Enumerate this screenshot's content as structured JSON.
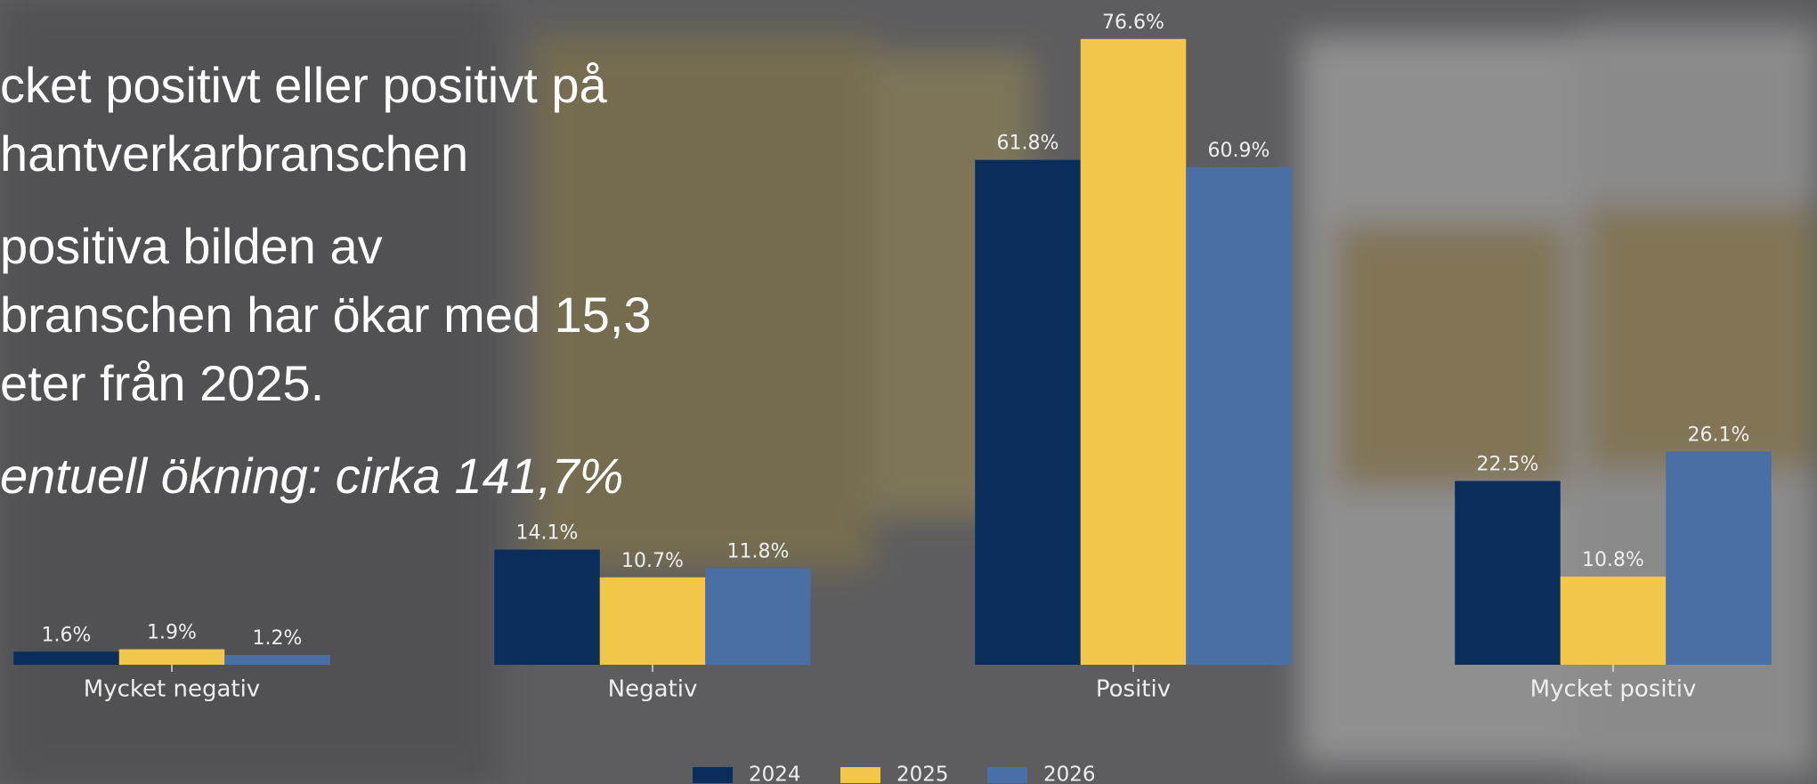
{
  "text": {
    "lines": [
      "cket positivt eller positivt på",
      "hantverkarbranschen",
      " positiva bilden av",
      "branschen har ökar med 15,3",
      "eter från 2025."
    ],
    "highlight": "entuell ökning: cirka 141,7%"
  },
  "chart_data": {
    "type": "bar",
    "categories": [
      "Mycket negativ",
      "Negativ",
      "Positiv",
      "Mycket positiv"
    ],
    "series": [
      {
        "name": "2024",
        "color": "#0b2d5b",
        "values": [
          1.6,
          14.1,
          61.8,
          22.5
        ],
        "value_labels": [
          "1.6%",
          "14.1%",
          "61.8%",
          "22.5%"
        ]
      },
      {
        "name": "2025",
        "color": "#f2c54b",
        "values": [
          1.9,
          10.7,
          76.6,
          10.8
        ],
        "value_labels": [
          "1.9%",
          "10.7%",
          "76.6%",
          "10.8%"
        ]
      },
      {
        "name": "2026",
        "color": "#4a6fa5",
        "values": [
          1.2,
          11.8,
          60.9,
          26.1
        ],
        "value_labels": [
          "1.2%",
          "11.8%",
          "60.9%",
          "26.1%"
        ]
      }
    ],
    "legend": "bottom"
  }
}
